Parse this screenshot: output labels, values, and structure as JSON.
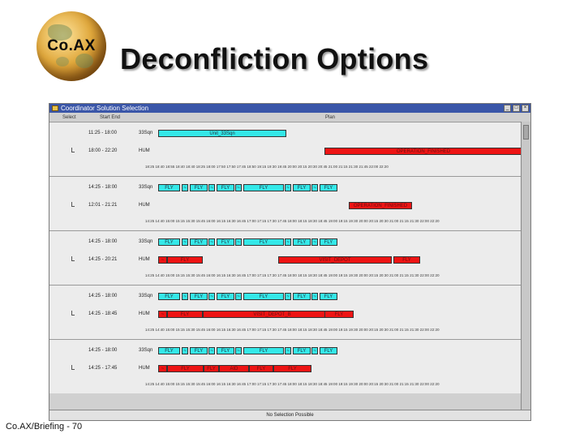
{
  "logo": {
    "text": "Co.AX"
  },
  "slide": {
    "title": "Deconfliction Options",
    "footer": "Co.AX/Briefing - 70"
  },
  "window": {
    "title": "Coordinator Solution Selection",
    "buttons": [
      "_",
      "□",
      "×"
    ],
    "columns": {
      "select": "Select",
      "startend": "Start End",
      "plan": "Plan"
    },
    "status": "No Selection Possible"
  },
  "panels": [
    {
      "rows": [
        {
          "time": "11:25 - 18:00",
          "vehicle": "33Sqn",
          "segments": [
            {
              "color": "cyan",
              "label": "Unit_33Sqn"
            }
          ]
        },
        {
          "time": "18:00 - 22:20",
          "vehicle": "HUM",
          "segments": [
            {
              "color": "red",
              "label": "OPERATION_FINISHED"
            }
          ]
        }
      ],
      "ticks": "18:25 18:40 18:55 18:40 18:40 18:25 18:00 17:50 17:50 17:45 18:50 19:15 19:30 19:45 20:00 20:15 20:30 20:45 21:00 21:15 21:30 21:45 22:00 22:20"
    },
    {
      "rows": [
        {
          "time": "14:25 - 18:00",
          "vehicle": "33Sqn",
          "segments": [
            {
              "color": "cyan",
              "label": "FLY"
            },
            {
              "color": "cyan",
              "label": "~"
            },
            {
              "color": "cyan",
              "label": "FLY"
            },
            {
              "color": "cyan",
              "label": "~"
            },
            {
              "color": "cyan",
              "label": "FLY"
            },
            {
              "color": "cyan",
              "label": "~"
            },
            {
              "color": "cyan",
              "label": "FLY"
            },
            {
              "color": "cyan",
              "label": "~"
            },
            {
              "color": "cyan",
              "label": "FLY"
            },
            {
              "color": "cyan",
              "label": "~"
            },
            {
              "color": "cyan",
              "label": "FLY"
            }
          ]
        },
        {
          "time": "12:01 - 21:21",
          "vehicle": "HUM",
          "segments": [
            {
              "color": "red",
              "label": "OPERATION_FINISHED"
            }
          ]
        }
      ],
      "ticks": "14:25 14:40 15:00 15:15 15:30 15:45 16:00 16:15 16:30 16:45 17:00 17:15 17:30 17:45 18:00 18:15 18:30 18:45 19:00 19:15 19:30 20:00 20:15 20:30 21:00 21:15 21:30 22:00 22:20"
    },
    {
      "rows": [
        {
          "time": "14:25 - 18:00",
          "vehicle": "33Sqn",
          "segments": [
            {
              "color": "cyan",
              "label": "FLY"
            },
            {
              "color": "cyan",
              "label": "~"
            },
            {
              "color": "cyan",
              "label": "FLY"
            },
            {
              "color": "cyan",
              "label": "~"
            },
            {
              "color": "cyan",
              "label": "FLY"
            },
            {
              "color": "cyan",
              "label": "~"
            },
            {
              "color": "cyan",
              "label": "FLY"
            },
            {
              "color": "cyan",
              "label": "~"
            },
            {
              "color": "cyan",
              "label": "FLY"
            },
            {
              "color": "cyan",
              "label": "~"
            },
            {
              "color": "cyan",
              "label": "FLY"
            }
          ]
        },
        {
          "time": "14:25 - 20:21",
          "vehicle": "HUM",
          "segments": [
            {
              "color": "red",
              "label": "~"
            },
            {
              "color": "red",
              "label": "FLY"
            },
            {
              "color": "red",
              "label": "VISIT_DEPOT"
            },
            {
              "color": "red",
              "label": "FLY"
            }
          ]
        }
      ],
      "ticks": "14:25 14:40 15:00 15:15 15:30 15:45 16:00 16:15 16:30 16:45 17:00 17:15 17:30 17:45 18:00 18:15 18:30 18:45 19:00 19:15 19:30 20:00 20:15 20:30 21:00 21:15 21:30 22:00 22:20"
    },
    {
      "rows": [
        {
          "time": "14:25 - 18:00",
          "vehicle": "33Sqn",
          "segments": [
            {
              "color": "cyan",
              "label": "FLY"
            },
            {
              "color": "cyan",
              "label": "~"
            },
            {
              "color": "cyan",
              "label": "FLY"
            },
            {
              "color": "cyan",
              "label": "~"
            },
            {
              "color": "cyan",
              "label": "FLY"
            },
            {
              "color": "cyan",
              "label": "~"
            },
            {
              "color": "cyan",
              "label": "FLY"
            },
            {
              "color": "cyan",
              "label": "~"
            },
            {
              "color": "cyan",
              "label": "FLY"
            },
            {
              "color": "cyan",
              "label": "~"
            },
            {
              "color": "cyan",
              "label": "FLY"
            }
          ]
        },
        {
          "time": "14:25 - 18:45",
          "vehicle": "HUM",
          "segments": [
            {
              "color": "red",
              "label": "~"
            },
            {
              "color": "red",
              "label": "FLY"
            },
            {
              "color": "red",
              "label": "VISIT_DEPOT_B"
            },
            {
              "color": "red",
              "label": "FLY"
            }
          ]
        }
      ],
      "ticks": "14:25 14:40 15:00 15:15 15:30 15:45 16:00 16:15 16:30 16:45 17:00 17:15 17:30 17:45 18:00 18:15 18:30 18:45 19:00 19:15 19:30 20:00 20:15 20:30 21:00 21:15 21:30 22:00 22:20"
    },
    {
      "rows": [
        {
          "time": "14:25 - 18:00",
          "vehicle": "33Sqn",
          "segments": [
            {
              "color": "cyan",
              "label": "FLY"
            },
            {
              "color": "cyan",
              "label": "~"
            },
            {
              "color": "cyan",
              "label": "FLY"
            },
            {
              "color": "cyan",
              "label": "~"
            },
            {
              "color": "cyan",
              "label": "FLY"
            },
            {
              "color": "cyan",
              "label": "~"
            },
            {
              "color": "cyan",
              "label": "FLY"
            },
            {
              "color": "cyan",
              "label": "~"
            },
            {
              "color": "cyan",
              "label": "FLY"
            },
            {
              "color": "cyan",
              "label": "~"
            },
            {
              "color": "cyan",
              "label": "FLY"
            }
          ]
        },
        {
          "time": "14:25 - 17:45",
          "vehicle": "HUM",
          "segments": [
            {
              "color": "red",
              "label": "~"
            },
            {
              "color": "red",
              "label": "FLY"
            },
            {
              "color": "red",
              "label": "FLY"
            },
            {
              "color": "red",
              "label": "AID"
            },
            {
              "color": "red",
              "label": "FLY"
            },
            {
              "color": "red",
              "label": "FLY"
            }
          ]
        }
      ],
      "ticks": "14:25 14:40 15:00 15:15 15:30 15:45 16:00 16:15 16:30 16:45 17:00 17:15 17:30 17:45 18:00 18:15 18:30 18:45 19:00 19:15 19:30 20:00 20:15 20:30 21:00 21:15 21:30 22:00 22:20"
    }
  ]
}
